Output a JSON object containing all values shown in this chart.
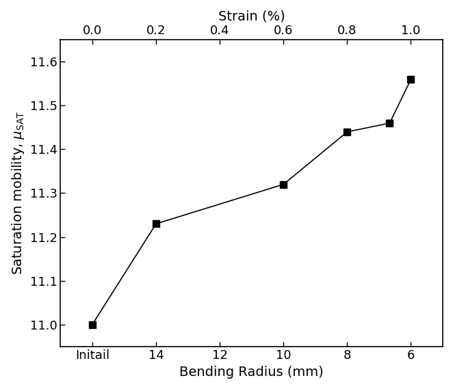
{
  "x_bottom_positions": [
    0,
    1,
    2,
    3,
    4,
    5
  ],
  "x_bottom_labels": [
    "Initail",
    "14",
    "12",
    "10",
    "8",
    "6"
  ],
  "x_top_labels": [
    "0.0",
    "0.2",
    "0.4",
    "0.6",
    "0.8",
    "1.0"
  ],
  "x_data": [
    0,
    1,
    3,
    4,
    4.667,
    5
  ],
  "y_data": [
    11.0,
    11.23,
    11.32,
    11.44,
    11.46,
    11.56
  ],
  "xlabel_bottom": "Bending Radius (mm)",
  "xlabel_top": "Strain (%)",
  "ylabel_main": "Saturation mobility, $\\mu$$_{\\mathregular{SAT}}$",
  "ylim": [
    10.95,
    11.65
  ],
  "yticks": [
    11.0,
    11.1,
    11.2,
    11.3,
    11.4,
    11.5,
    11.6
  ],
  "marker": "s",
  "marker_color": "black",
  "marker_size": 7,
  "line_color": "black",
  "line_width": 1.2,
  "background_color": "#ffffff",
  "tick_fontsize": 13,
  "label_fontsize": 14
}
